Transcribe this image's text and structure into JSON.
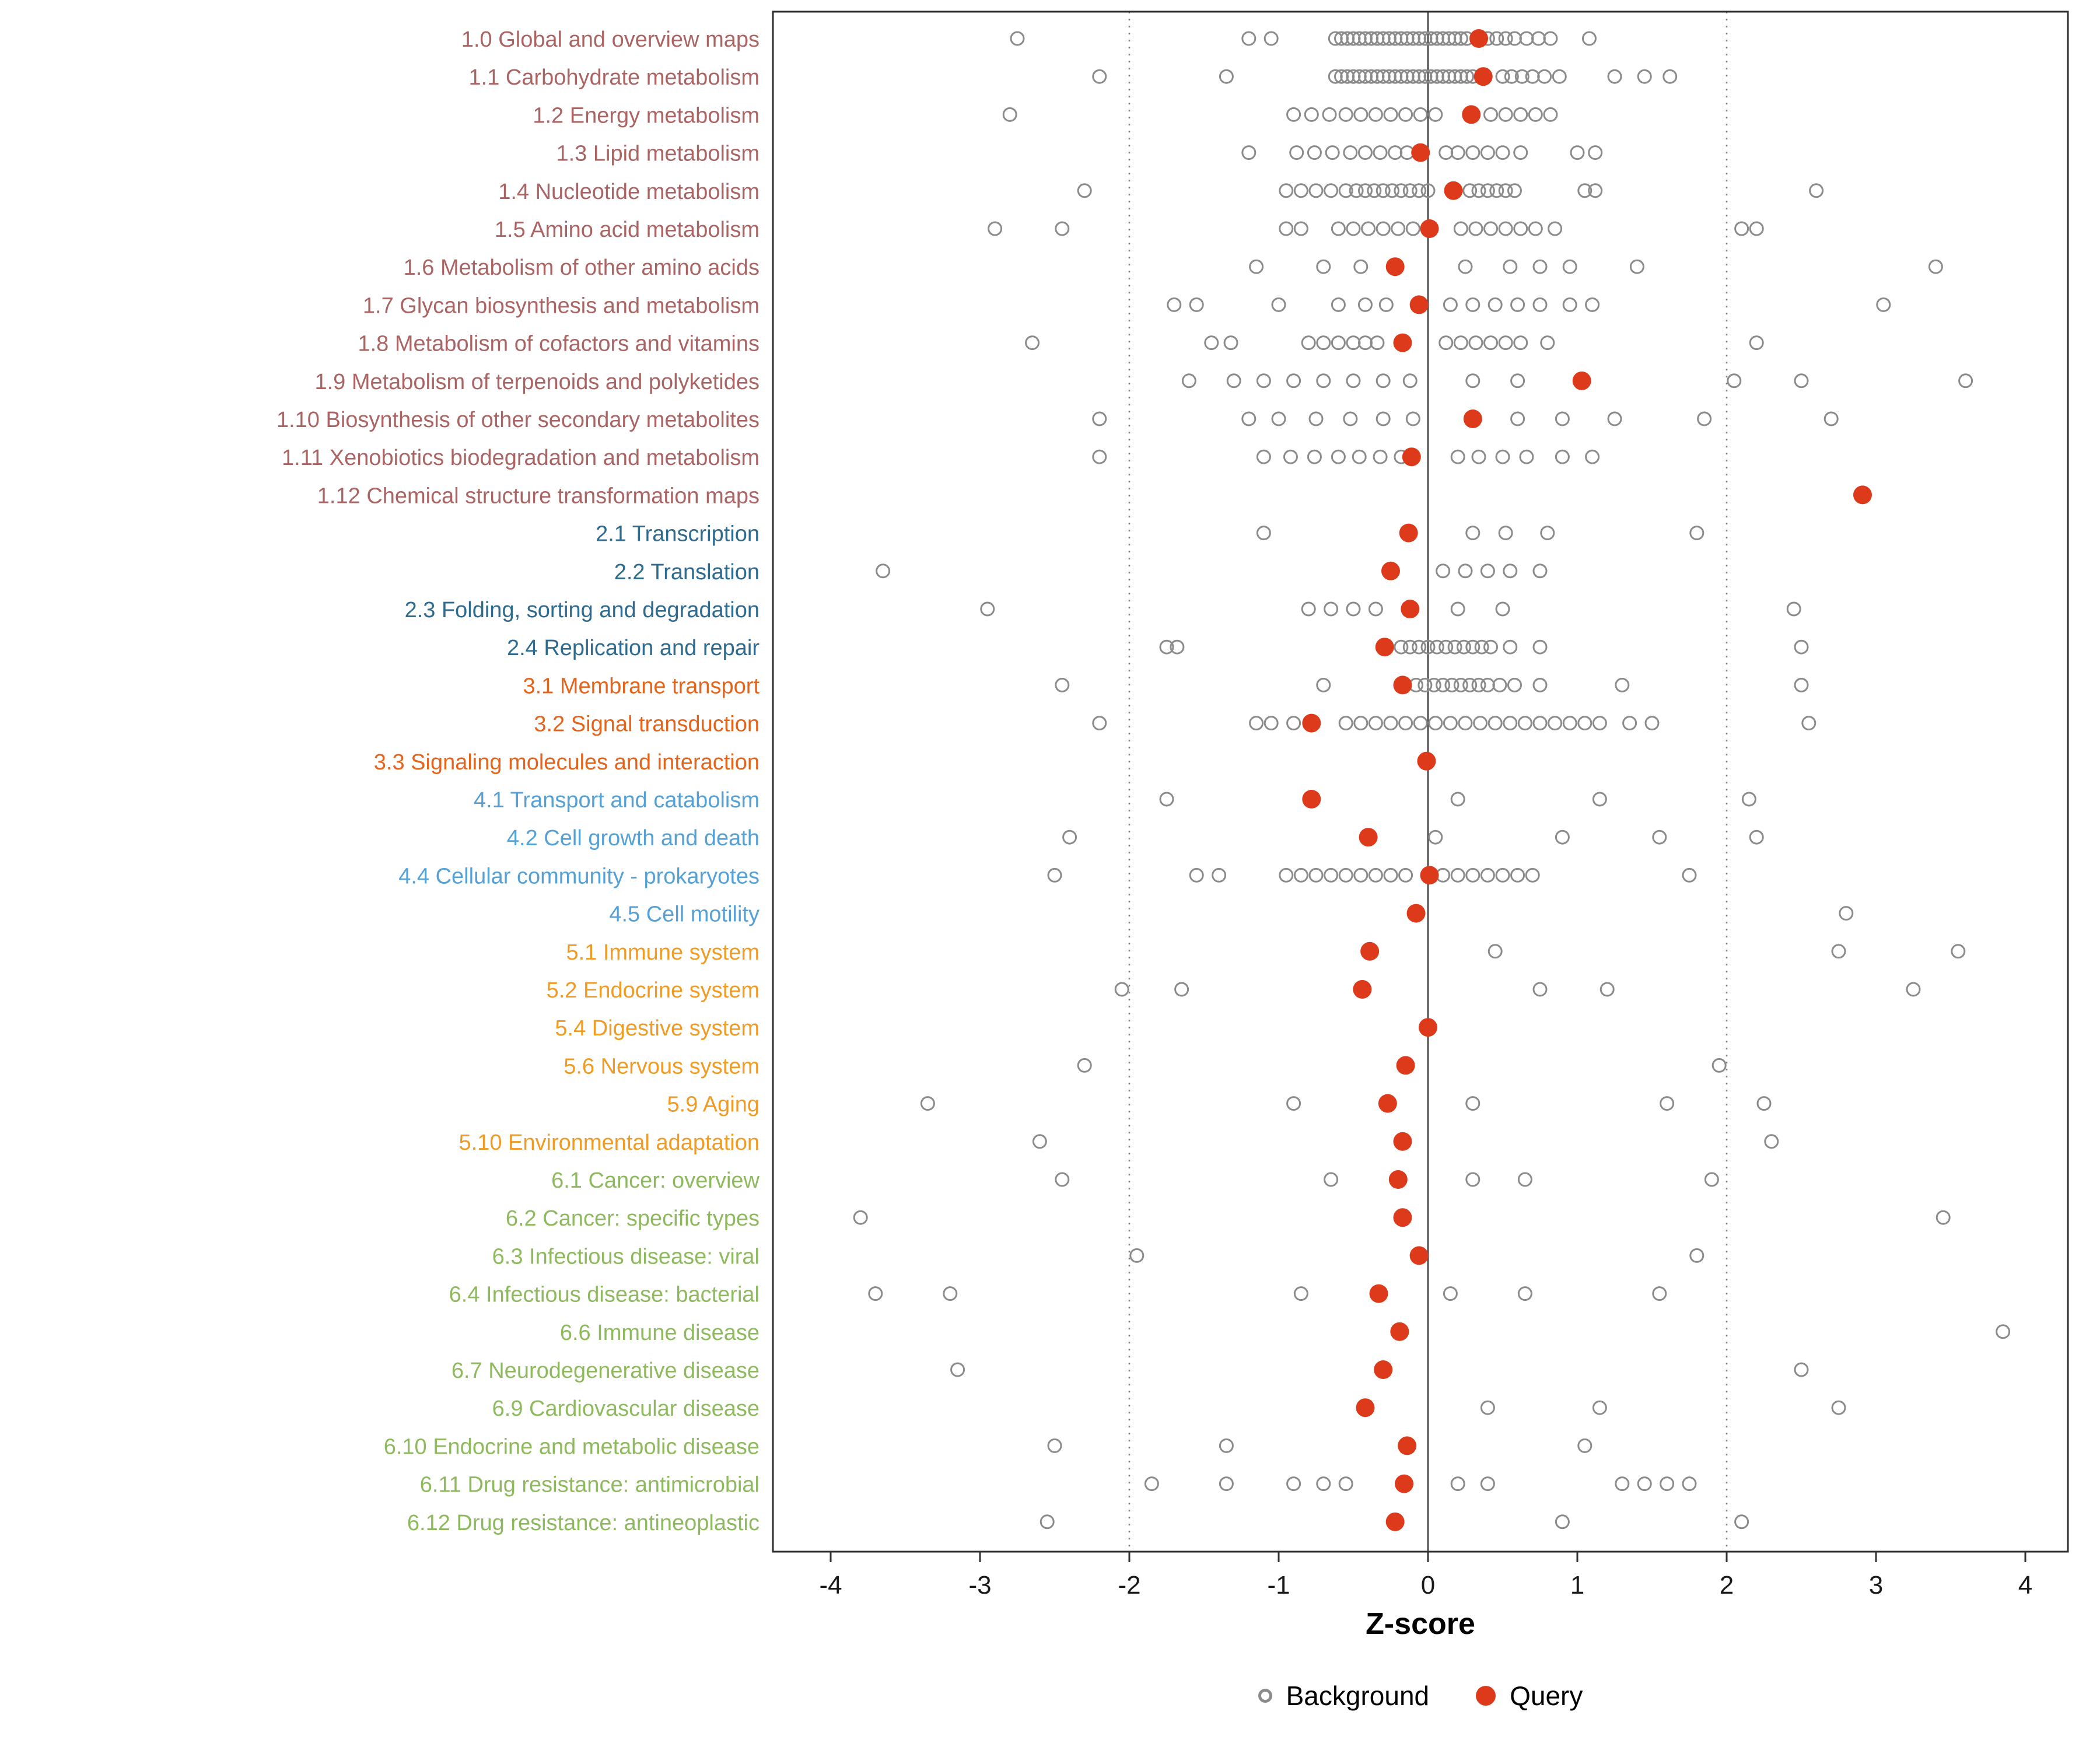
{
  "chart_data": {
    "type": "scatter",
    "title": "",
    "xlabel": "Z-score",
    "x_ticks": [
      -4,
      -3,
      -2,
      -1,
      0,
      1,
      2,
      3,
      4
    ],
    "xlim": [
      -4.4,
      4.3
    ],
    "grid": false,
    "legend_position": "bottom",
    "reference_lines": {
      "solid": [
        0
      ],
      "dotted": [
        -2,
        2
      ]
    },
    "colors": {
      "query": "#dd3a1c",
      "background": "#8b8b8b",
      "zero_line": "#4d4d4d",
      "ref_line": "#7d7d7d",
      "panel_border": "#2e2e2e",
      "tick": "#333333",
      "tick_label": "#1a1a1a"
    },
    "group_colors": {
      "1": "#ab6464",
      "2": "#2f6a8f",
      "3": "#e5641c",
      "4": "#55a1d6",
      "5": "#ef9b24",
      "6": "#8eb95e"
    },
    "legend": [
      {
        "label": "Background",
        "type": "background"
      },
      {
        "label": "Query",
        "type": "query"
      }
    ],
    "rows": [
      {
        "label": "1.0 Global and overview maps",
        "group": "1",
        "query": 0.34,
        "background": [
          -2.75,
          -1.2,
          -1.05,
          -0.62,
          -0.58,
          -0.54,
          -0.5,
          -0.46,
          -0.42,
          -0.38,
          -0.34,
          -0.3,
          -0.26,
          -0.22,
          -0.18,
          -0.14,
          -0.1,
          -0.06,
          -0.02,
          0.02,
          0.06,
          0.1,
          0.14,
          0.18,
          0.22,
          0.26,
          0.4,
          0.46,
          0.52,
          0.58,
          0.66,
          0.74,
          0.82,
          1.08
        ]
      },
      {
        "label": "1.1 Carbohydrate metabolism",
        "group": "1",
        "query": 0.37,
        "background": [
          -2.2,
          -1.35,
          -0.62,
          -0.58,
          -0.54,
          -0.5,
          -0.46,
          -0.42,
          -0.38,
          -0.34,
          -0.3,
          -0.26,
          -0.22,
          -0.18,
          -0.14,
          -0.1,
          -0.06,
          -0.02,
          0.02,
          0.06,
          0.1,
          0.14,
          0.18,
          0.22,
          0.26,
          0.3,
          0.5,
          0.56,
          0.63,
          0.7,
          0.78,
          0.88,
          1.25,
          1.45,
          1.62
        ]
      },
      {
        "label": "1.2 Energy metabolism",
        "group": "1",
        "query": 0.29,
        "background": [
          -2.8,
          -0.9,
          -0.78,
          -0.66,
          -0.55,
          -0.45,
          -0.35,
          -0.25,
          -0.15,
          -0.05,
          0.05,
          0.42,
          0.52,
          0.62,
          0.72,
          0.82
        ]
      },
      {
        "label": "1.3 Lipid metabolism",
        "group": "1",
        "query": -0.05,
        "background": [
          -1.2,
          -0.88,
          -0.76,
          -0.64,
          -0.52,
          -0.42,
          -0.32,
          -0.22,
          -0.14,
          0.12,
          0.2,
          0.3,
          0.4,
          0.5,
          0.62,
          1.0,
          1.12
        ]
      },
      {
        "label": "1.4 Nucleotide metabolism",
        "group": "1",
        "query": 0.17,
        "background": [
          -2.3,
          -0.95,
          -0.85,
          -0.75,
          -0.65,
          -0.55,
          -0.48,
          -0.42,
          -0.36,
          -0.3,
          -0.24,
          -0.18,
          -0.12,
          -0.06,
          0,
          0.28,
          0.34,
          0.4,
          0.46,
          0.52,
          0.58,
          1.05,
          1.12,
          2.6
        ]
      },
      {
        "label": "1.5 Amino acid metabolism",
        "group": "1",
        "query": 0.01,
        "background": [
          -2.9,
          -2.45,
          -0.95,
          -0.85,
          -0.6,
          -0.5,
          -0.4,
          -0.3,
          -0.2,
          -0.1,
          0.22,
          0.32,
          0.42,
          0.52,
          0.62,
          0.72,
          0.85,
          2.1,
          2.2
        ]
      },
      {
        "label": "1.6 Metabolism of other amino acids",
        "group": "1",
        "query": -0.22,
        "background": [
          -1.15,
          -0.7,
          -0.45,
          0.25,
          0.55,
          0.75,
          0.95,
          1.4,
          3.4
        ]
      },
      {
        "label": "1.7 Glycan biosynthesis and metabolism",
        "group": "1",
        "query": -0.06,
        "background": [
          -1.7,
          -1.55,
          -1.0,
          -0.6,
          -0.42,
          -0.28,
          0.15,
          0.3,
          0.45,
          0.6,
          0.75,
          0.95,
          1.1,
          3.05
        ]
      },
      {
        "label": "1.8 Metabolism of cofactors and vitamins",
        "group": "1",
        "query": -0.17,
        "background": [
          -2.65,
          -1.45,
          -1.32,
          -0.8,
          -0.7,
          -0.6,
          -0.5,
          -0.42,
          -0.34,
          0.12,
          0.22,
          0.32,
          0.42,
          0.52,
          0.62,
          0.8,
          2.2
        ]
      },
      {
        "label": "1.9 Metabolism of terpenoids and polyketides",
        "group": "1",
        "query": 1.03,
        "background": [
          -1.6,
          -1.3,
          -1.1,
          -0.9,
          -0.7,
          -0.5,
          -0.3,
          -0.12,
          0.3,
          0.6,
          2.05,
          2.5,
          3.6
        ]
      },
      {
        "label": "1.10 Biosynthesis of other secondary metabolites",
        "group": "1",
        "query": 0.3,
        "background": [
          -2.2,
          -1.2,
          -1.0,
          -0.75,
          -0.52,
          -0.3,
          -0.1,
          0.6,
          0.9,
          1.25,
          1.85,
          2.7
        ]
      },
      {
        "label": "1.11 Xenobiotics biodegradation and metabolism",
        "group": "1",
        "query": -0.11,
        "background": [
          -2.2,
          -1.1,
          -0.92,
          -0.76,
          -0.6,
          -0.46,
          -0.32,
          -0.18,
          0.2,
          0.34,
          0.5,
          0.66,
          0.9,
          1.1
        ]
      },
      {
        "label": "1.12 Chemical structure transformation maps",
        "group": "1",
        "query": 2.91,
        "background": []
      },
      {
        "label": "2.1 Transcription",
        "group": "2",
        "query": -0.13,
        "background": [
          -1.1,
          0.3,
          0.52,
          0.8,
          1.8
        ]
      },
      {
        "label": "2.2 Translation",
        "group": "2",
        "query": -0.25,
        "background": [
          -3.65,
          0.1,
          0.25,
          0.4,
          0.55,
          0.75
        ]
      },
      {
        "label": "2.3 Folding, sorting and degradation",
        "group": "2",
        "query": -0.12,
        "background": [
          -2.95,
          -0.8,
          -0.65,
          -0.5,
          -0.35,
          0.2,
          0.5,
          2.45
        ]
      },
      {
        "label": "2.4 Replication and repair",
        "group": "2",
        "query": -0.29,
        "background": [
          -1.75,
          -1.68,
          -0.18,
          -0.12,
          -0.06,
          0,
          0.06,
          0.12,
          0.18,
          0.24,
          0.3,
          0.36,
          0.42,
          0.55,
          0.75,
          2.5
        ]
      },
      {
        "label": "3.1 Membrane transport",
        "group": "3",
        "query": -0.17,
        "background": [
          -2.45,
          -0.7,
          -0.08,
          -0.02,
          0.04,
          0.1,
          0.16,
          0.22,
          0.28,
          0.34,
          0.4,
          0.48,
          0.58,
          0.75,
          1.3,
          2.5
        ]
      },
      {
        "label": "3.2 Signal transduction",
        "group": "3",
        "query": -0.78,
        "background": [
          -2.2,
          -1.15,
          -1.05,
          -0.9,
          -0.55,
          -0.45,
          -0.35,
          -0.25,
          -0.15,
          -0.05,
          0.05,
          0.15,
          0.25,
          0.35,
          0.45,
          0.55,
          0.65,
          0.75,
          0.85,
          0.95,
          1.05,
          1.15,
          1.35,
          1.5,
          2.55
        ]
      },
      {
        "label": "3.3 Signaling molecules and interaction",
        "group": "3",
        "query": -0.01,
        "background": []
      },
      {
        "label": "4.1 Transport and catabolism",
        "group": "4",
        "query": -0.78,
        "background": [
          -1.75,
          0.2,
          1.15,
          2.15
        ]
      },
      {
        "label": "4.2 Cell growth and death",
        "group": "4",
        "query": -0.4,
        "background": [
          -2.4,
          0.05,
          0.9,
          1.55,
          2.2
        ]
      },
      {
        "label": "4.4 Cellular community - prokaryotes",
        "group": "4",
        "query": 0.01,
        "background": [
          -2.5,
          -1.55,
          -1.4,
          -0.95,
          -0.85,
          -0.75,
          -0.65,
          -0.55,
          -0.45,
          -0.35,
          -0.25,
          -0.15,
          0.1,
          0.2,
          0.3,
          0.4,
          0.5,
          0.6,
          0.7,
          1.75
        ]
      },
      {
        "label": "4.5 Cell motility",
        "group": "4",
        "query": -0.08,
        "background": [
          2.8
        ]
      },
      {
        "label": "5.1 Immune system",
        "group": "5",
        "query": -0.39,
        "background": [
          0.45,
          2.75,
          3.55
        ]
      },
      {
        "label": "5.2 Endocrine system",
        "group": "5",
        "query": -0.44,
        "background": [
          -2.05,
          -1.65,
          0.75,
          1.2,
          3.25
        ]
      },
      {
        "label": "5.4 Digestive system",
        "group": "5",
        "query": 0.0,
        "background": []
      },
      {
        "label": "5.6 Nervous system",
        "group": "5",
        "query": -0.15,
        "background": [
          -2.3,
          1.95
        ]
      },
      {
        "label": "5.9 Aging",
        "group": "5",
        "query": -0.27,
        "background": [
          -3.35,
          -0.9,
          0.3,
          1.6,
          2.25
        ]
      },
      {
        "label": "5.10 Environmental adaptation",
        "group": "5",
        "query": -0.17,
        "background": [
          -2.6,
          2.3
        ]
      },
      {
        "label": "6.1 Cancer: overview",
        "group": "6",
        "query": -0.2,
        "background": [
          -2.45,
          -0.65,
          0.3,
          0.65,
          1.9
        ]
      },
      {
        "label": "6.2 Cancer: specific types",
        "group": "6",
        "query": -0.17,
        "background": [
          -3.8,
          3.45
        ]
      },
      {
        "label": "6.3 Infectious disease: viral",
        "group": "6",
        "query": -0.06,
        "background": [
          -1.95,
          1.8
        ]
      },
      {
        "label": "6.4 Infectious disease: bacterial",
        "group": "6",
        "query": -0.33,
        "background": [
          -3.7,
          -3.2,
          -0.85,
          0.15,
          0.65,
          1.55
        ]
      },
      {
        "label": "6.6 Immune disease",
        "group": "6",
        "query": -0.19,
        "background": [
          3.85
        ]
      },
      {
        "label": "6.7 Neurodegenerative disease",
        "group": "6",
        "query": -0.3,
        "background": [
          -3.15,
          2.5
        ]
      },
      {
        "label": "6.9 Cardiovascular disease",
        "group": "6",
        "query": -0.42,
        "background": [
          0.4,
          1.15,
          2.75
        ]
      },
      {
        "label": "6.10 Endocrine and metabolic disease",
        "group": "6",
        "query": -0.14,
        "background": [
          -2.5,
          -1.35,
          1.05
        ]
      },
      {
        "label": "6.11 Drug resistance: antimicrobial",
        "group": "6",
        "query": -0.16,
        "background": [
          -1.85,
          -1.35,
          -0.9,
          -0.7,
          -0.55,
          0.2,
          0.4,
          1.3,
          1.45,
          1.6,
          1.75
        ]
      },
      {
        "label": "6.12 Drug resistance: antineoplastic",
        "group": "6",
        "query": -0.22,
        "background": [
          -2.55,
          0.9,
          2.1
        ]
      }
    ]
  }
}
